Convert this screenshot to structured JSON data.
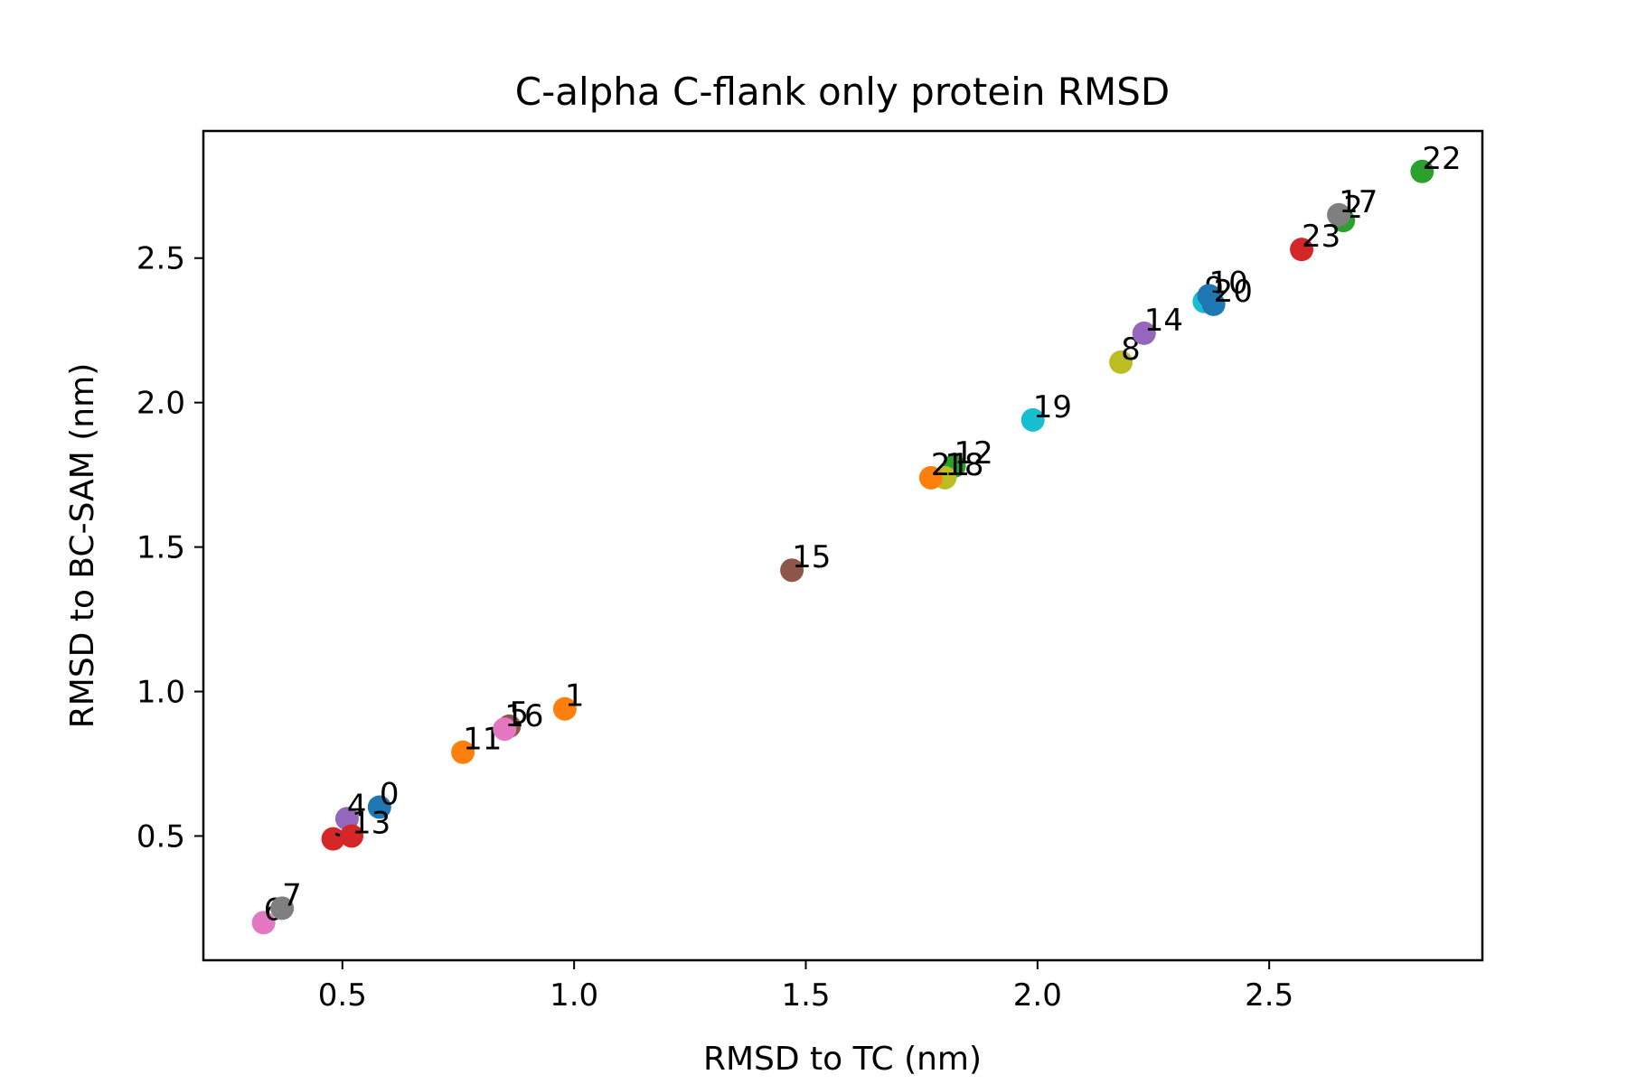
{
  "chart_data": {
    "type": "scatter",
    "title": "C-alpha C-flank only protein RMSD",
    "xlabel": "RMSD to TC (nm)",
    "ylabel": "RMSD to BC-SAM (nm)",
    "xlim": [
      0.2,
      2.96
    ],
    "ylim": [
      0.07,
      2.94
    ],
    "xticks": [
      "0.5",
      "1.0",
      "1.5",
      "2.0",
      "2.5"
    ],
    "yticks": [
      "0.5",
      "1.0",
      "1.5",
      "2.0",
      "2.5"
    ],
    "grid": false,
    "points": [
      {
        "label": "0",
        "x": 0.58,
        "y": 0.6,
        "color": "#1f77b4"
      },
      {
        "label": "1",
        "x": 0.98,
        "y": 0.94,
        "color": "#ff7f0e"
      },
      {
        "label": "2",
        "x": 2.66,
        "y": 2.63,
        "color": "#2ca02c"
      },
      {
        "label": "3",
        "x": 0.48,
        "y": 0.49,
        "color": "#d62728"
      },
      {
        "label": "4",
        "x": 0.51,
        "y": 0.56,
        "color": "#9467bd"
      },
      {
        "label": "5",
        "x": 0.86,
        "y": 0.88,
        "color": "#8c564b"
      },
      {
        "label": "6",
        "x": 0.33,
        "y": 0.2,
        "color": "#e377c2"
      },
      {
        "label": "7",
        "x": 0.37,
        "y": 0.25,
        "color": "#7f7f7f"
      },
      {
        "label": "8",
        "x": 2.18,
        "y": 2.14,
        "color": "#bcbd22"
      },
      {
        "label": "9",
        "x": 2.36,
        "y": 2.35,
        "color": "#17becf"
      },
      {
        "label": "10",
        "x": 2.37,
        "y": 2.37,
        "color": "#1f77b4"
      },
      {
        "label": "11",
        "x": 0.76,
        "y": 0.79,
        "color": "#ff7f0e"
      },
      {
        "label": "12",
        "x": 1.82,
        "y": 1.78,
        "color": "#2ca02c"
      },
      {
        "label": "13",
        "x": 0.52,
        "y": 0.5,
        "color": "#d62728"
      },
      {
        "label": "14",
        "x": 2.23,
        "y": 2.24,
        "color": "#9467bd"
      },
      {
        "label": "15",
        "x": 1.47,
        "y": 1.42,
        "color": "#8c564b"
      },
      {
        "label": "16",
        "x": 0.85,
        "y": 0.87,
        "color": "#e377c2"
      },
      {
        "label": "17",
        "x": 2.65,
        "y": 2.65,
        "color": "#7f7f7f"
      },
      {
        "label": "18",
        "x": 1.8,
        "y": 1.74,
        "color": "#bcbd22"
      },
      {
        "label": "19",
        "x": 1.99,
        "y": 1.94,
        "color": "#17becf"
      },
      {
        "label": "20",
        "x": 2.38,
        "y": 2.34,
        "color": "#1f77b4"
      },
      {
        "label": "21",
        "x": 1.77,
        "y": 1.74,
        "color": "#ff7f0e"
      },
      {
        "label": "22",
        "x": 2.83,
        "y": 2.8,
        "color": "#2ca02c"
      },
      {
        "label": "23",
        "x": 2.57,
        "y": 2.53,
        "color": "#d62728"
      }
    ]
  }
}
